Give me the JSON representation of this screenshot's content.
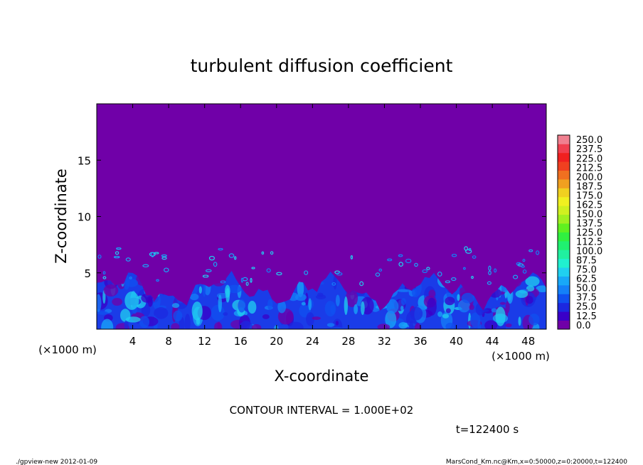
{
  "chart_data": {
    "type": "heatmap",
    "title": "turbulent diffusion coefficient",
    "xlabel": "X-coordinate",
    "ylabel": "Z-coordinate",
    "x_unit": "(×1000 m)",
    "y_unit": "(×1000 m)",
    "xlim": [
      0,
      50
    ],
    "ylim": [
      0,
      20
    ],
    "x_ticks": [
      4,
      8,
      12,
      16,
      20,
      24,
      28,
      32,
      36,
      40,
      44,
      48
    ],
    "y_ticks": [
      5,
      10,
      15
    ],
    "contour_interval": "CONTOUR INTERVAL = 1.000E+02",
    "time_label": "t=122400 s",
    "colorbar": {
      "levels": [
        "0.0",
        "12.5",
        "25.0",
        "37.5",
        "50.0",
        "62.5",
        "75.0",
        "87.5",
        "100.0",
        "112.5",
        "125.0",
        "137.5",
        "150.0",
        "162.5",
        "175.0",
        "187.5",
        "200.0",
        "212.5",
        "225.0",
        "237.5",
        "250.0"
      ],
      "colors": [
        "#7000a8",
        "#3a00c8",
        "#1c28e0",
        "#1050f0",
        "#1480f8",
        "#18a8f8",
        "#20d0f0",
        "#20f0d0",
        "#20f0a0",
        "#20f070",
        "#30f040",
        "#60f020",
        "#a0f020",
        "#d0f020",
        "#f0f020",
        "#f0d020",
        "#f0a020",
        "#f07020",
        "#f04020",
        "#f02020",
        "#f04050",
        "#f08090"
      ]
    },
    "field_note": "background ~0.0 above z≈3.5; turbulent boundary layer values 12.5–62.5 below",
    "boundary_layer_top_z": 3.5
  },
  "footer": {
    "left": "./gpview-new  2012-01-09",
    "right": "MarsCond_Km.nc@Km,x=0:50000,z=0:20000,t=122400"
  }
}
